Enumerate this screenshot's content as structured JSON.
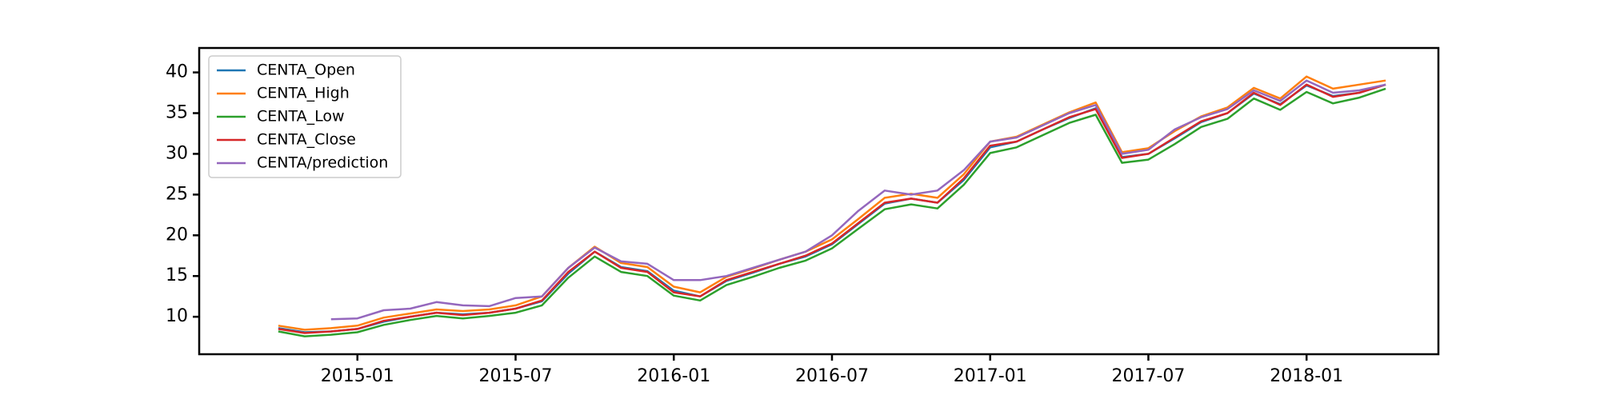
{
  "chart_data": {
    "type": "line",
    "x": [
      "2014-10",
      "2014-11",
      "2014-12",
      "2015-01",
      "2015-02",
      "2015-03",
      "2015-04",
      "2015-05",
      "2015-06",
      "2015-07",
      "2015-08",
      "2015-09",
      "2015-10",
      "2015-11",
      "2015-12",
      "2016-01",
      "2016-02",
      "2016-03",
      "2016-04",
      "2016-05",
      "2016-06",
      "2016-07",
      "2016-08",
      "2016-09",
      "2016-10",
      "2016-11",
      "2016-12",
      "2017-01",
      "2017-02",
      "2017-03",
      "2017-04",
      "2017-05",
      "2017-06",
      "2017-07",
      "2017-08",
      "2017-09",
      "2017-10",
      "2017-11",
      "2017-12",
      "2018-01",
      "2018-02",
      "2018-03",
      "2018-04"
    ],
    "series": [
      {
        "name": "CENTA_Open",
        "color": "#1f77b4",
        "values": [
          8.6,
          8.1,
          8.2,
          8.5,
          9.4,
          10.0,
          10.5,
          10.3,
          10.5,
          11.0,
          11.9,
          15.3,
          18.0,
          16.1,
          15.6,
          13.2,
          12.5,
          14.4,
          15.4,
          16.5,
          17.4,
          18.9,
          21.4,
          23.9,
          24.5,
          24.0,
          26.8,
          30.8,
          31.5,
          33.0,
          34.4,
          35.6,
          29.6,
          30.0,
          31.9,
          33.9,
          35.0,
          37.4,
          36.1,
          38.4,
          37.1,
          37.5,
          38.5
        ]
      },
      {
        "name": "CENTA_High",
        "color": "#ff7f0e",
        "values": [
          8.9,
          8.4,
          8.6,
          8.9,
          9.9,
          10.4,
          10.9,
          10.7,
          10.9,
          11.4,
          12.5,
          16.0,
          18.6,
          16.6,
          16.1,
          13.7,
          13.0,
          14.9,
          15.9,
          17.0,
          18.0,
          19.5,
          22.0,
          24.6,
          25.1,
          24.6,
          27.5,
          31.5,
          32.1,
          33.6,
          35.1,
          36.3,
          30.2,
          30.7,
          32.8,
          34.6,
          35.7,
          38.1,
          36.8,
          39.5,
          38.0,
          38.5,
          39.0
        ]
      },
      {
        "name": "CENTA_Low",
        "color": "#2ca02c",
        "values": [
          8.2,
          7.6,
          7.8,
          8.1,
          9.0,
          9.6,
          10.1,
          9.8,
          10.1,
          10.5,
          11.4,
          14.8,
          17.4,
          15.5,
          15.0,
          12.6,
          12.0,
          13.9,
          14.9,
          16.0,
          16.9,
          18.4,
          20.8,
          23.2,
          23.8,
          23.3,
          26.2,
          30.1,
          30.8,
          32.3,
          33.8,
          34.8,
          28.9,
          29.3,
          31.2,
          33.3,
          34.3,
          36.8,
          35.4,
          37.6,
          36.2,
          36.9,
          38.0
        ]
      },
      {
        "name": "CENTA_Close",
        "color": "#d62728",
        "values": [
          8.5,
          8.0,
          8.2,
          8.5,
          9.5,
          10.0,
          10.5,
          10.2,
          10.5,
          11.0,
          12.0,
          15.5,
          18.0,
          16.0,
          15.5,
          13.0,
          12.5,
          14.5,
          15.5,
          16.5,
          17.5,
          19.0,
          21.5,
          24.0,
          24.5,
          24.0,
          27.0,
          31.0,
          31.5,
          33.0,
          34.5,
          35.5,
          29.5,
          30.0,
          32.0,
          34.0,
          35.0,
          37.5,
          36.0,
          38.5,
          37.0,
          37.5,
          38.5
        ]
      },
      {
        "name": "CENTA/prediction",
        "color": "#9467bd",
        "values": [
          null,
          null,
          9.7,
          9.8,
          10.8,
          11.0,
          11.8,
          11.4,
          11.3,
          12.3,
          12.5,
          16.0,
          18.5,
          16.8,
          16.5,
          14.5,
          14.5,
          15.0,
          16.0,
          17.0,
          18.0,
          20.0,
          23.0,
          25.5,
          25.0,
          25.5,
          28.0,
          31.5,
          32.0,
          33.5,
          35.0,
          36.0,
          30.0,
          30.5,
          33.0,
          34.5,
          35.5,
          37.8,
          36.5,
          39.0,
          37.5,
          37.8,
          38.5
        ]
      }
    ],
    "xlim": [
      "2014-07",
      "2018-06"
    ],
    "xticks": [
      "2015-01",
      "2015-07",
      "2016-01",
      "2016-07",
      "2017-01",
      "2017-07",
      "2018-01"
    ],
    "ylim": [
      5.4,
      43.0
    ],
    "yticks": [
      10,
      15,
      20,
      25,
      30,
      35,
      40
    ],
    "legend": "upper left"
  }
}
